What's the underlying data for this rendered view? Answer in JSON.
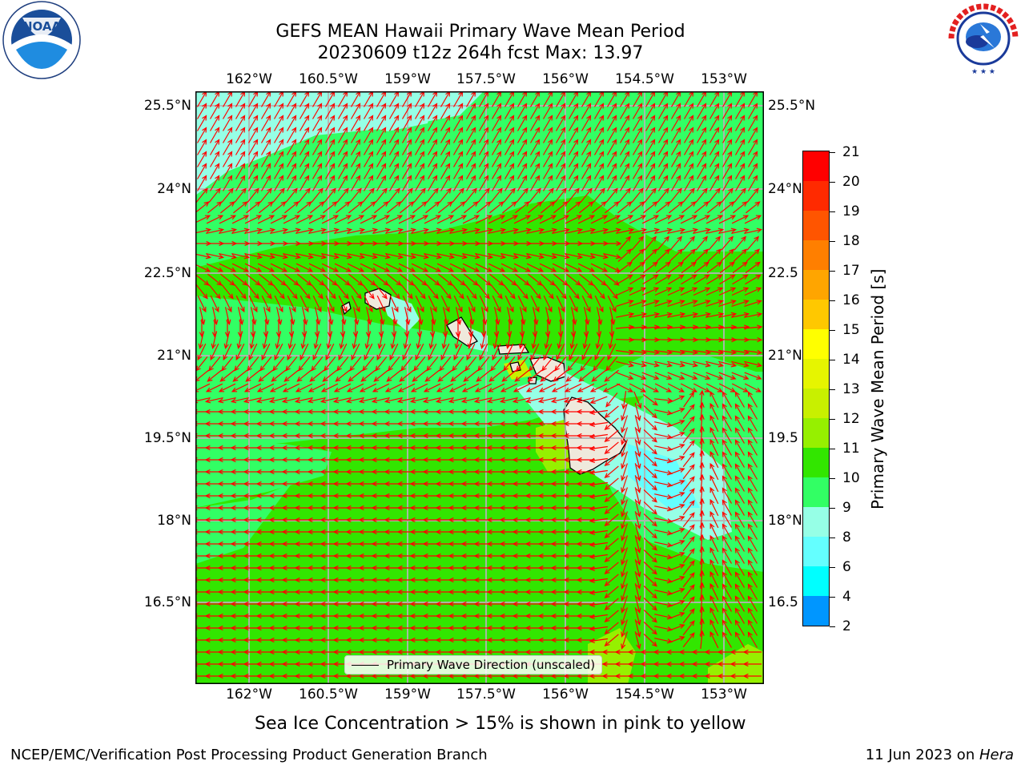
{
  "title": {
    "line1": "GEFS MEAN Hawaii Primary Wave Mean Period",
    "line2": "20230609 t12z 264h fcst   Max: 13.97"
  },
  "logos": {
    "left": {
      "text": "NOAA",
      "ring_text": "NATIONAL OCEANIC AND ATMOSPHERIC ADMINISTRATION · U.S. DEPARTMENT OF COMMERCE",
      "icon": "noaa-logo"
    },
    "right": {
      "text": "NATIONAL WEATHER SERVICE",
      "icon": "nws-logo"
    }
  },
  "map": {
    "lon_ticks": [
      "162°W",
      "160.5°W",
      "159°W",
      "157.5°W",
      "156°W",
      "154.5°W",
      "153°W"
    ],
    "lat_ticks": [
      "25.5°N",
      "24°N",
      "22.5°N",
      "21°N",
      "19.5°N",
      "18°N",
      "16.5°N"
    ],
    "lat_ticks_right": [
      "25.5°N",
      "24°N",
      "22.5",
      "21°N",
      "19.5",
      "18°N",
      "16.5"
    ],
    "legend": "Primary Wave Direction (unscaled)",
    "arrow_color": "#ff0000",
    "land_color": "#efe9dc"
  },
  "colorbar": {
    "label": "Primary Wave Mean Period [s]",
    "ticks": [
      "21",
      "20",
      "19",
      "18",
      "17",
      "16",
      "15",
      "14",
      "13",
      "12",
      "11",
      "10",
      "9",
      "8",
      "6",
      "4",
      "2"
    ],
    "colors": [
      "#ff0000",
      "#ff2a00",
      "#ff5500",
      "#ff7f00",
      "#ffa500",
      "#ffc800",
      "#ffff00",
      "#e6f500",
      "#c8f000",
      "#96f000",
      "#32e600",
      "#32ff64",
      "#96ffe6",
      "#64ffff",
      "#00ffff",
      "#0096ff",
      "#0078ff",
      "#0000ff"
    ]
  },
  "subtitle": "Sea Ice Concentration > 15% is shown in pink to yellow",
  "footer": {
    "left": "NCEP/EMC/Verification Post Processing Product Generation Branch",
    "right_date": "11 Jun 2023 on ",
    "right_host": "Hera"
  }
}
